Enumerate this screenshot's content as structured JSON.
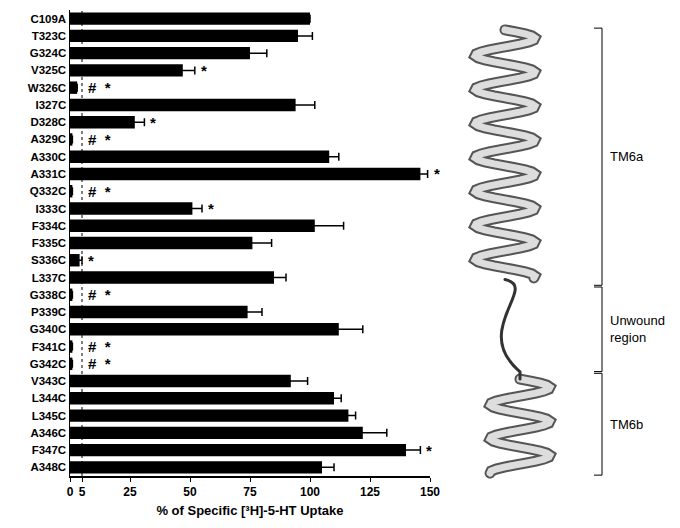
{
  "chart_data": {
    "type": "bar",
    "orientation": "horizontal",
    "color": "#000000",
    "xlabel": "% of Specific [³H]-5-HT Uptake",
    "xlim": [
      0,
      150
    ],
    "xticks": [
      0,
      5,
      25,
      50,
      75,
      100,
      125,
      150
    ],
    "threshold": 5,
    "categories": [
      "C109A",
      "T323C",
      "G324C",
      "V325C",
      "W326C",
      "I327C",
      "D328C",
      "A329C",
      "A330C",
      "A331C",
      "Q332C",
      "I333C",
      "F334C",
      "F335C",
      "S336C",
      "L337C",
      "G338C",
      "P339C",
      "G340C",
      "F341C",
      "G342C",
      "V343C",
      "L344C",
      "L345C",
      "A346C",
      "F347C",
      "A348C"
    ],
    "values": [
      100,
      95,
      75,
      47,
      3,
      94,
      27,
      1,
      108,
      146,
      1,
      51,
      102,
      76,
      4,
      85,
      1,
      74,
      112,
      1,
      1,
      92,
      110,
      116,
      122,
      140,
      105
    ],
    "errors": [
      0,
      6,
      7,
      5,
      0,
      8,
      4,
      0,
      4,
      3,
      0,
      4,
      12,
      8,
      1,
      5,
      0,
      6,
      10,
      0,
      0,
      7,
      3,
      3,
      10,
      6,
      5
    ],
    "marks": [
      null,
      null,
      null,
      "*",
      "# *",
      null,
      "*",
      "# *",
      null,
      "*",
      "# *",
      "*",
      null,
      null,
      "*",
      null,
      "# *",
      null,
      null,
      "# *",
      "# *",
      null,
      null,
      null,
      null,
      "*",
      null
    ],
    "regions": [
      {
        "label": "TM6a",
        "from": "T323C",
        "to": "L337C"
      },
      {
        "label": "Unwound region",
        "from": "G338C",
        "to": "G342C"
      },
      {
        "label": "TM6b",
        "from": "V343C",
        "to": "A348C"
      }
    ]
  }
}
